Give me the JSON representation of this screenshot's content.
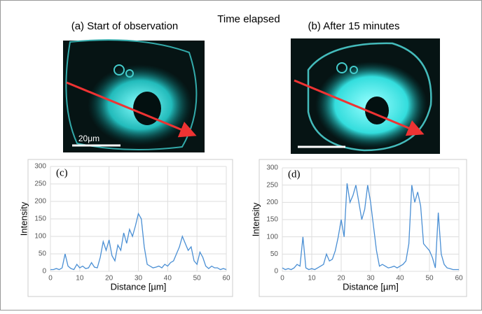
{
  "figure": {
    "title": "Time elapsed",
    "panels": [
      {
        "label": "(a) Start of observation",
        "scale_label": "20μm"
      },
      {
        "label": "(b) After 15 minutes"
      }
    ]
  },
  "chart_data": [
    {
      "type": "line",
      "annotation": "(c)",
      "x_label": "Distance [µm]",
      "y_label": "Intensity",
      "grid": true,
      "xlim": [
        0,
        60
      ],
      "xticks": [
        0,
        10,
        20,
        30,
        40,
        50,
        60
      ],
      "ylim": [
        0,
        300
      ],
      "yticks": [
        0,
        50,
        100,
        150,
        200,
        250,
        300
      ],
      "x": [
        0,
        1,
        2,
        3,
        4,
        5,
        6,
        7,
        8,
        9,
        10,
        11,
        12,
        13,
        14,
        15,
        16,
        17,
        18,
        19,
        20,
        21,
        22,
        23,
        24,
        25,
        26,
        27,
        28,
        29,
        30,
        31,
        32,
        33,
        34,
        35,
        36,
        37,
        38,
        39,
        40,
        41,
        42,
        43,
        44,
        45,
        46,
        47,
        48,
        49,
        50,
        51,
        52,
        53,
        54,
        55,
        56,
        57,
        58,
        59,
        60
      ],
      "series": [
        {
          "color": "#4a8fd4",
          "values": [
            5,
            5,
            8,
            5,
            10,
            50,
            15,
            8,
            5,
            20,
            10,
            15,
            8,
            10,
            25,
            12,
            10,
            40,
            85,
            60,
            90,
            45,
            30,
            75,
            60,
            110,
            80,
            120,
            100,
            130,
            165,
            150,
            70,
            20,
            15,
            10,
            12,
            15,
            10,
            20,
            15,
            25,
            30,
            50,
            70,
            100,
            80,
            60,
            70,
            30,
            20,
            55,
            40,
            15,
            8,
            15,
            10,
            10,
            5,
            8,
            5
          ]
        }
      ]
    },
    {
      "type": "line",
      "annotation": "(d)",
      "x_label": "Distance [µm]",
      "y_label": "Intensity",
      "grid": true,
      "xlim": [
        0,
        60
      ],
      "xticks": [
        0,
        10,
        20,
        30,
        40,
        50,
        60
      ],
      "ylim": [
        0,
        300
      ],
      "yticks": [
        0,
        50,
        100,
        150,
        200,
        250,
        300
      ],
      "x": [
        0,
        1,
        2,
        3,
        4,
        5,
        6,
        7,
        8,
        9,
        10,
        11,
        12,
        13,
        14,
        15,
        16,
        17,
        18,
        19,
        20,
        21,
        22,
        23,
        24,
        25,
        26,
        27,
        28,
        29,
        30,
        31,
        32,
        33,
        34,
        35,
        36,
        37,
        38,
        39,
        40,
        41,
        42,
        43,
        44,
        45,
        46,
        47,
        48,
        49,
        50,
        51,
        52,
        53,
        54,
        55,
        56,
        57,
        58,
        59,
        60
      ],
      "series": [
        {
          "color": "#4a8fd4",
          "values": [
            10,
            5,
            8,
            5,
            10,
            20,
            15,
            100,
            10,
            5,
            8,
            5,
            10,
            15,
            20,
            50,
            30,
            35,
            60,
            100,
            150,
            100,
            255,
            200,
            220,
            250,
            200,
            150,
            180,
            250,
            200,
            130,
            60,
            15,
            20,
            15,
            10,
            12,
            15,
            10,
            15,
            20,
            30,
            80,
            250,
            200,
            230,
            190,
            80,
            70,
            60,
            40,
            10,
            170,
            50,
            20,
            10,
            8,
            5,
            5,
            5
          ]
        }
      ]
    }
  ]
}
